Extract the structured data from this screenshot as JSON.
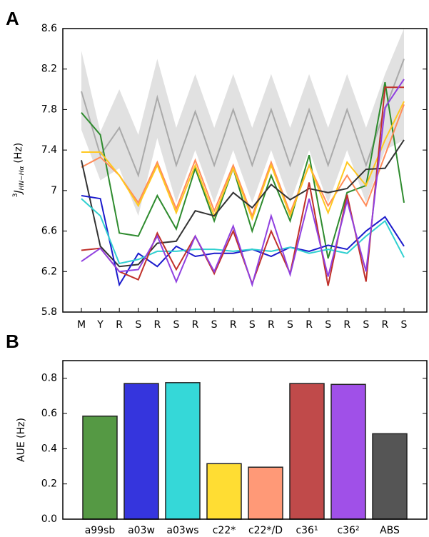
{
  "chart_data": [
    {
      "type": "line",
      "panel": "A",
      "y_label": {
        "sup": "3",
        "main": "J",
        "sub": "HN−Hα",
        "unit": "(Hz)"
      },
      "categories": [
        "M",
        "Y",
        "R",
        "S",
        "R",
        "S",
        "R",
        "S",
        "R",
        "S",
        "R",
        "S",
        "R",
        "S",
        "R",
        "S",
        "R",
        "S"
      ],
      "ylim": [
        5.8,
        8.6
      ],
      "yticks": [
        5.8,
        6.2,
        6.6,
        7.0,
        7.4,
        7.8,
        8.2,
        8.6
      ],
      "band": {
        "color": "#d9d9d9",
        "upper": [
          8.38,
          7.58,
          8.0,
          7.55,
          8.3,
          7.62,
          8.15,
          7.62,
          8.15,
          7.62,
          8.15,
          7.62,
          8.15,
          7.62,
          8.15,
          7.62,
          8.15,
          8.6
        ],
        "lower": [
          7.6,
          7.1,
          7.22,
          6.75,
          7.52,
          6.88,
          7.4,
          6.88,
          7.4,
          6.88,
          7.4,
          6.88,
          7.4,
          6.88,
          7.4,
          6.88,
          7.4,
          7.5
        ]
      },
      "series": [
        {
          "color": "#aaaaaa",
          "values": [
            7.98,
            7.35,
            7.62,
            7.15,
            7.92,
            7.25,
            7.78,
            7.25,
            7.8,
            7.25,
            7.8,
            7.25,
            7.8,
            7.25,
            7.8,
            7.25,
            7.8,
            8.3
          ]
        },
        {
          "color": "#2e8b2e",
          "values": [
            7.77,
            7.55,
            6.58,
            6.55,
            6.95,
            6.62,
            7.22,
            6.7,
            7.22,
            6.6,
            7.15,
            6.7,
            7.35,
            6.33,
            6.98,
            7.05,
            8.07,
            6.88
          ]
        },
        {
          "color": "#ff8c5a",
          "values": [
            7.23,
            7.33,
            7.15,
            6.88,
            7.28,
            6.82,
            7.3,
            6.8,
            7.25,
            6.75,
            7.28,
            6.78,
            7.25,
            6.85,
            7.15,
            6.85,
            7.35,
            7.85
          ]
        },
        {
          "color": "#ffc820",
          "values": [
            7.38,
            7.38,
            7.15,
            6.85,
            7.25,
            6.78,
            7.25,
            6.75,
            7.22,
            6.72,
            7.25,
            6.75,
            7.25,
            6.78,
            7.28,
            7.05,
            7.5,
            7.88
          ]
        },
        {
          "color": "#333333",
          "values": [
            7.3,
            6.45,
            6.25,
            6.27,
            6.48,
            6.5,
            6.8,
            6.75,
            6.98,
            6.83,
            7.06,
            6.91,
            7.02,
            6.98,
            7.02,
            7.21,
            7.22,
            7.5
          ]
        },
        {
          "color": "#1a1acc",
          "values": [
            6.95,
            6.92,
            6.07,
            6.38,
            6.25,
            6.45,
            6.35,
            6.38,
            6.38,
            6.42,
            6.35,
            6.44,
            6.4,
            6.46,
            6.42,
            6.6,
            6.74,
            6.45
          ]
        },
        {
          "color": "#30d0d0",
          "values": [
            6.92,
            6.75,
            6.28,
            6.32,
            6.4,
            6.4,
            6.42,
            6.42,
            6.4,
            6.42,
            6.4,
            6.44,
            6.38,
            6.42,
            6.38,
            6.55,
            6.7,
            6.34
          ]
        },
        {
          "color": "#c0302a",
          "values": [
            6.41,
            6.43,
            6.2,
            6.12,
            6.58,
            6.22,
            6.55,
            6.18,
            6.6,
            6.08,
            6.6,
            6.18,
            7.08,
            6.06,
            6.96,
            6.1,
            8.02,
            8.02
          ]
        },
        {
          "color": "#9040e0",
          "values": [
            6.3,
            6.43,
            6.2,
            6.22,
            6.55,
            6.1,
            6.55,
            6.2,
            6.65,
            6.07,
            6.75,
            6.17,
            6.92,
            6.15,
            6.9,
            6.2,
            7.82,
            8.1
          ]
        }
      ]
    },
    {
      "type": "bar",
      "panel": "B",
      "y_label": "AUE (Hz)",
      "categories": [
        "a99sb",
        "a03w",
        "a03ws",
        "c22*",
        "c22*/D",
        "c36¹",
        "c36²",
        "ABS"
      ],
      "values": [
        0.585,
        0.77,
        0.775,
        0.315,
        0.295,
        0.77,
        0.765,
        0.485
      ],
      "colors": [
        "#559944",
        "#3535dd",
        "#35d8d8",
        "#ffdd33",
        "#ff9977",
        "#c04a4a",
        "#a050e8",
        "#555555"
      ],
      "ylim": [
        0,
        0.9
      ],
      "yticks": [
        {
          "value": 0,
          "label": "0.0"
        },
        0.2,
        0.4,
        0.6,
        0.8
      ]
    }
  ]
}
